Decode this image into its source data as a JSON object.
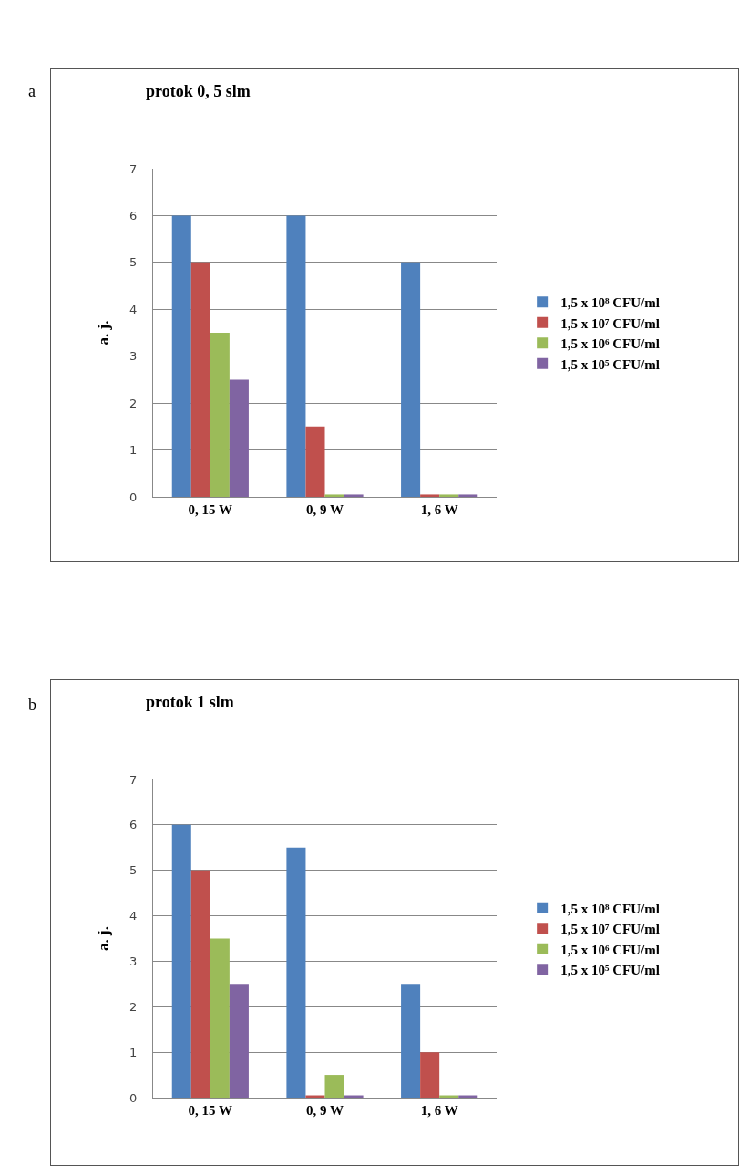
{
  "chart_data": [
    {
      "type": "bar",
      "title": "protok 0, 5 slm",
      "ylabel": "a. j.",
      "annotations": [
        "a"
      ],
      "categories": [
        "0, 15 W",
        "0, 9 W",
        "1, 6 W"
      ],
      "series": [
        {
          "name": "1,5 x 10⁸ CFU/ml",
          "color": "#4f81bd",
          "values": [
            6,
            6,
            5
          ]
        },
        {
          "name": "1,5 x 10⁷ CFU/ml",
          "color": "#c0504d",
          "values": [
            5,
            1.5,
            0.05
          ]
        },
        {
          "name": "1,5 x 10⁶ CFU/ml",
          "color": "#9bbb59",
          "values": [
            3.5,
            0.05,
            0.05
          ]
        },
        {
          "name": "1,5 x 10⁵ CFU/ml",
          "color": "#8064a2",
          "values": [
            2.5,
            0.05,
            0.05
          ]
        }
      ],
      "ylim": [
        0,
        7
      ],
      "yticks": [
        0,
        1,
        2,
        3,
        4,
        5,
        6,
        7
      ],
      "grid": "y",
      "legend": "right"
    },
    {
      "type": "bar",
      "title": "protok 1 slm",
      "ylabel": "a. j.",
      "annotations": [
        "b"
      ],
      "categories": [
        "0, 15 W",
        "0, 9 W",
        "1, 6 W"
      ],
      "series": [
        {
          "name": "1,5 x 10⁸ CFU/ml",
          "color": "#4f81bd",
          "values": [
            6,
            5.5,
            2.5
          ]
        },
        {
          "name": "1,5 x 10⁷ CFU/ml",
          "color": "#c0504d",
          "values": [
            5,
            0.05,
            1
          ]
        },
        {
          "name": "1,5 x 10⁶ CFU/ml",
          "color": "#9bbb59",
          "values": [
            3.5,
            0.5,
            0.05
          ]
        },
        {
          "name": "1,5 x 10⁵ CFU/ml",
          "color": "#8064a2",
          "values": [
            2.5,
            0.05,
            0.05
          ]
        }
      ],
      "ylim": [
        0,
        7
      ],
      "yticks": [
        0,
        1,
        2,
        3,
        4,
        5,
        6,
        7
      ],
      "grid": "y",
      "legend": "right"
    }
  ]
}
